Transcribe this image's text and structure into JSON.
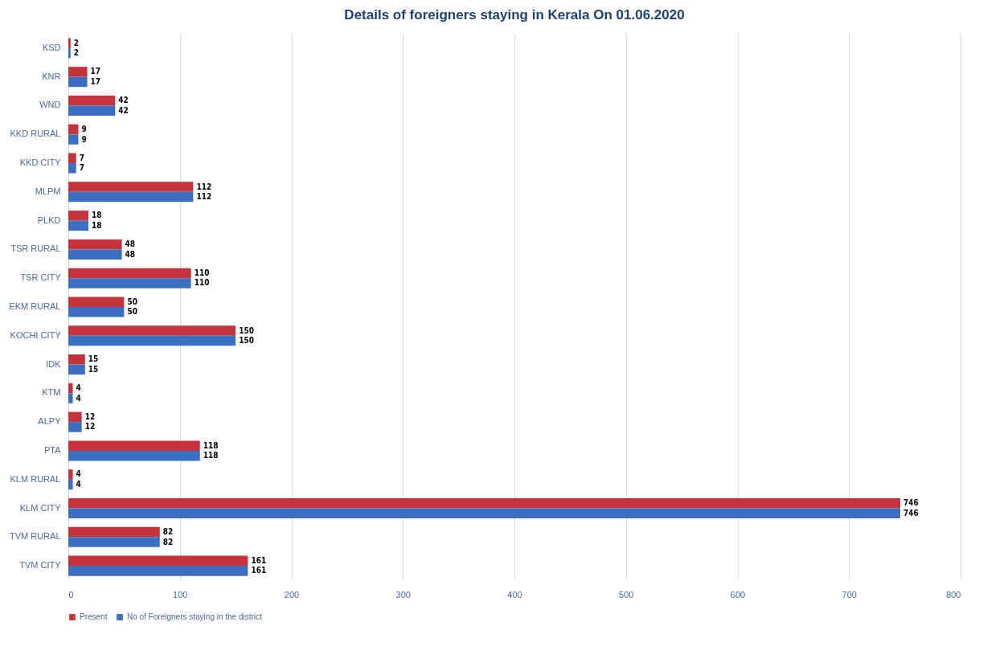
{
  "chart_data": {
    "type": "bar",
    "orientation": "horizontal",
    "title": "Details of foreigners staying in Kerala On 01.06.2020",
    "categories": [
      "KSD",
      "KNR",
      "WND",
      "KKD RURAL",
      "KKD CITY",
      "MLPM",
      "PLKD",
      "TSR RURAL",
      "TSR CITY",
      "EKM RURAL",
      "KOCHI CITY",
      "IDK",
      "KTM",
      "ALPY",
      "PTA",
      "KLM RURAL",
      "KLM CITY",
      "TVM RURAL",
      "TVM CITY"
    ],
    "series": [
      {
        "name": "Present",
        "color": "#c6343b",
        "values": [
          2,
          17,
          42,
          9,
          7,
          112,
          18,
          48,
          110,
          50,
          150,
          15,
          4,
          12,
          118,
          4,
          746,
          82,
          161
        ]
      },
      {
        "name": "No of Foreigners staying in the district",
        "color": "#3b6fc2",
        "values": [
          2,
          17,
          42,
          9,
          7,
          112,
          18,
          48,
          110,
          50,
          150,
          15,
          4,
          12,
          118,
          4,
          746,
          82,
          161
        ]
      }
    ],
    "xlim": [
      0,
      800
    ],
    "xticks": [
      0,
      100,
      200,
      300,
      400,
      500,
      600,
      700,
      800
    ],
    "grid": "x",
    "legend": "bottom",
    "data_labels": true
  }
}
